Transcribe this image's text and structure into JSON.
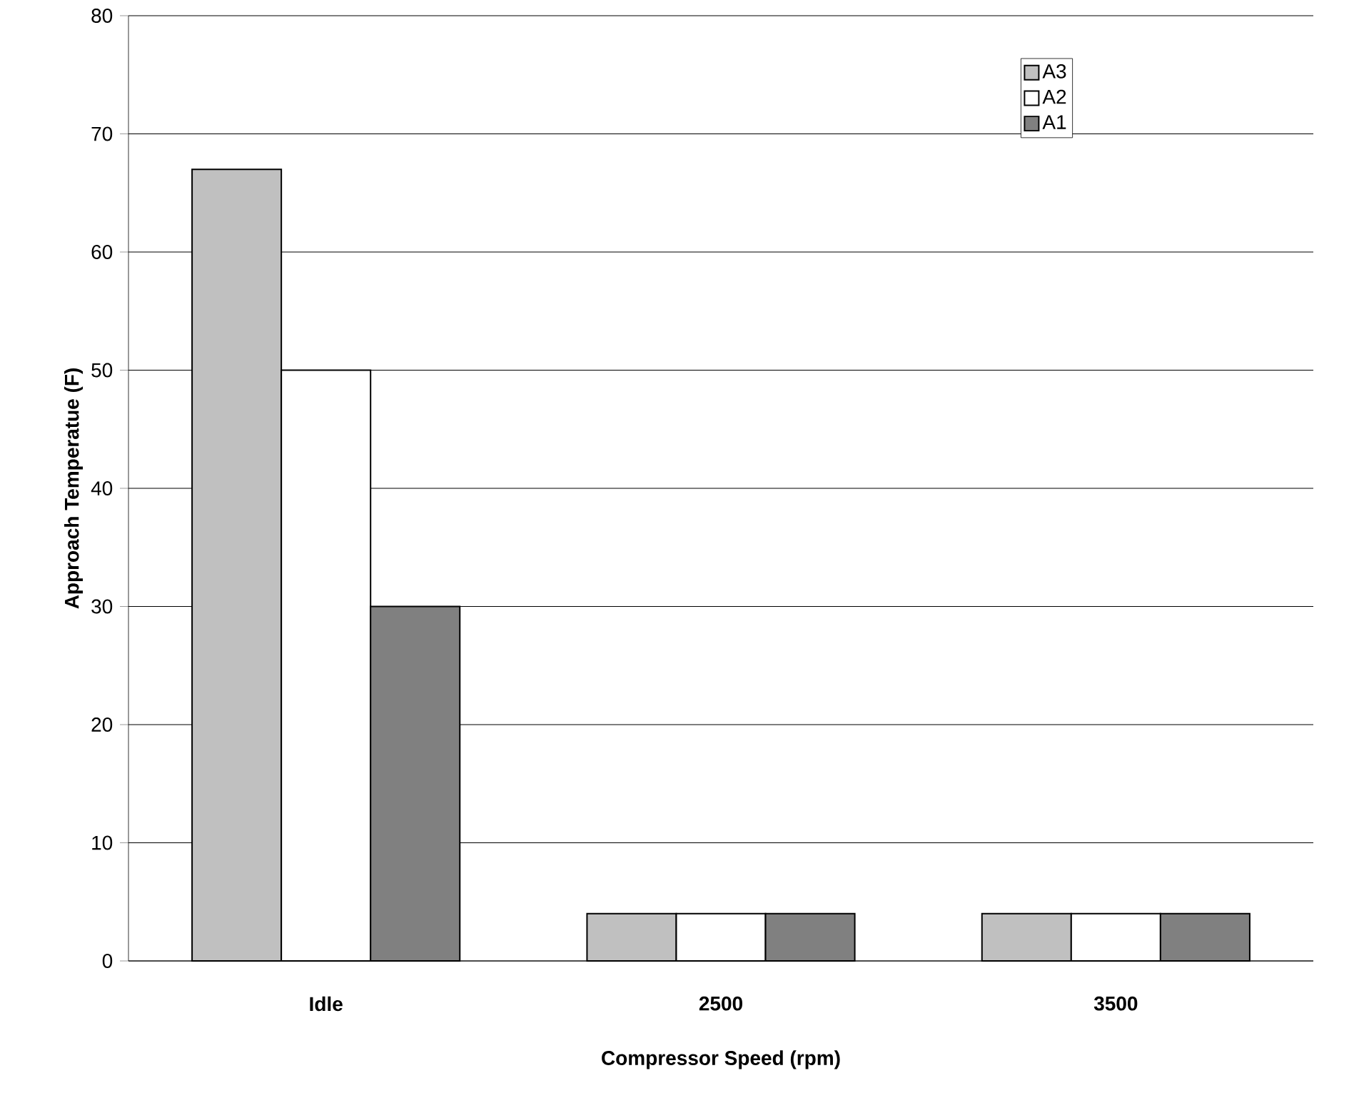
{
  "chart_data": {
    "type": "bar",
    "xlabel": "Compressor Speed (rpm)",
    "ylabel": "Approach Temperatue (F)",
    "categories": [
      "Idle",
      "2500",
      "3500"
    ],
    "series": [
      {
        "name": "A3",
        "color": "#c0c0c0",
        "values": [
          67,
          4,
          4
        ]
      },
      {
        "name": "A2",
        "color": "#ffffff",
        "values": [
          50,
          4,
          4
        ]
      },
      {
        "name": "A1",
        "color": "#808080",
        "values": [
          30,
          4,
          4
        ]
      }
    ],
    "ylim": [
      0,
      80
    ],
    "yticks": [
      0,
      10,
      20,
      30,
      40,
      50,
      60,
      70,
      80
    ],
    "grid": "y",
    "legend": "top right"
  }
}
